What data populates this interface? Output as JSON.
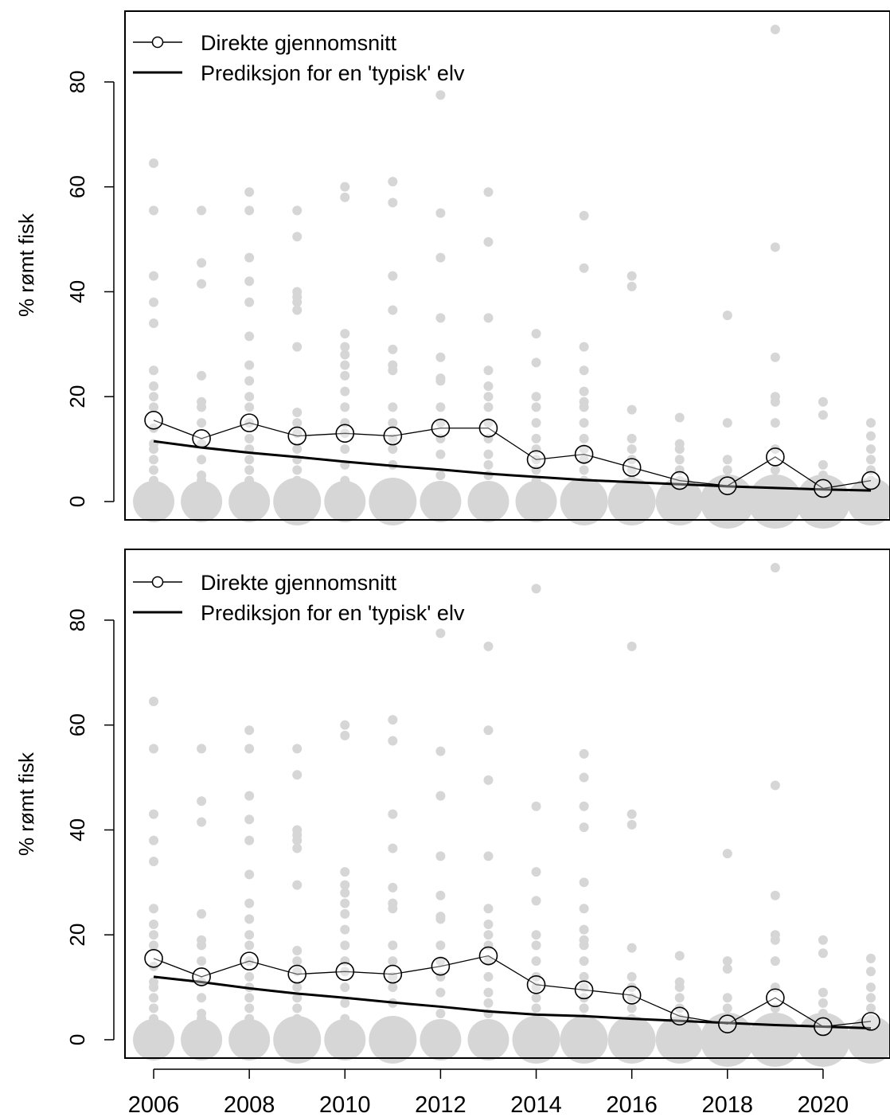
{
  "chart_data": [
    {
      "type": "scatter",
      "ylabel": "% rømt fisk",
      "xlabel": "",
      "title": "",
      "xlim": [
        2005.4,
        2021.4
      ],
      "ylim": [
        -3.5,
        93.5
      ],
      "y_ticks": [
        "0",
        "20",
        "40",
        "60",
        "80"
      ],
      "legend": {
        "position": "top-left",
        "entries": [
          "Direkte gjennomsnitt",
          "Prediksjon for en 'typisk' elv"
        ]
      },
      "colors": {
        "points": "#d6d6d6",
        "lines": "#000000"
      },
      "raw_points": [
        {
          "x": 2006,
          "y": [
            64.5,
            55.5,
            43,
            38,
            34,
            25,
            22,
            20,
            18,
            14,
            11,
            10,
            8,
            6,
            4,
            2
          ],
          "zero_size": 3
        },
        {
          "x": 2007,
          "y": [
            55.5,
            45.5,
            41.5,
            24,
            19,
            18,
            15,
            11,
            8,
            5,
            4,
            3,
            2
          ],
          "zero_size": 3
        },
        {
          "x": 2008,
          "y": [
            59,
            55.5,
            46.5,
            42,
            38,
            31.5,
            26,
            23,
            20,
            18,
            15,
            12,
            10,
            8,
            6,
            4,
            2
          ],
          "zero_size": 3
        },
        {
          "x": 2009,
          "y": [
            55.5,
            50.5,
            40,
            39,
            38,
            36.5,
            29.5,
            17,
            15,
            13,
            10,
            8,
            6,
            4,
            2
          ],
          "zero_size": 4
        },
        {
          "x": 2010,
          "y": [
            60,
            58,
            32,
            29.5,
            28,
            26,
            24,
            21,
            18,
            15,
            13,
            10,
            7,
            4,
            3,
            2
          ],
          "zero_size": 3
        },
        {
          "x": 2011,
          "y": [
            61,
            57,
            43,
            36.5,
            29,
            26,
            25,
            18,
            15,
            12,
            10,
            7,
            3,
            2
          ],
          "zero_size": 4
        },
        {
          "x": 2012,
          "y": [
            77.5,
            55,
            46.5,
            35,
            27.5,
            23.5,
            23,
            18,
            15,
            12,
            9,
            5,
            3,
            2
          ],
          "zero_size": 3
        },
        {
          "x": 2013,
          "y": [
            59,
            49.5,
            35,
            25,
            22,
            20,
            18,
            15,
            12,
            9,
            7,
            5,
            3,
            2
          ],
          "zero_size": 3
        },
        {
          "x": 2014,
          "y": [
            32,
            26.5,
            20,
            18,
            15,
            12,
            10,
            8,
            6,
            4,
            2
          ],
          "zero_size": 3
        },
        {
          "x": 2015,
          "y": [
            54.5,
            44.5,
            29.5,
            25,
            21,
            19,
            18,
            15,
            12,
            10,
            8,
            6,
            4,
            2
          ],
          "zero_size": 4
        },
        {
          "x": 2016,
          "y": [
            43,
            41,
            17.5,
            12,
            10,
            8,
            6,
            4,
            2
          ],
          "zero_size": 4
        },
        {
          "x": 2017,
          "y": [
            16,
            11,
            10,
            8,
            6,
            4,
            2
          ],
          "zero_size": 4
        },
        {
          "x": 2018,
          "y": [
            35.5,
            15,
            8,
            6,
            4,
            2
          ],
          "zero_size": 5
        },
        {
          "x": 2019,
          "y": [
            90,
            48.5,
            27.5,
            20,
            19,
            15,
            10,
            6,
            4,
            2
          ],
          "zero_size": 5
        },
        {
          "x": 2020,
          "y": [
            19,
            16.5,
            7,
            5,
            3,
            2
          ],
          "zero_size": 5
        },
        {
          "x": 2021,
          "y": [
            15,
            12.5,
            10,
            8,
            6,
            4,
            2
          ],
          "zero_size": 4
        }
      ],
      "series": [
        {
          "name": "Direkte gjennomsnitt",
          "x": [
            2006,
            2007,
            2008,
            2009,
            2010,
            2011,
            2012,
            2013,
            2014,
            2015,
            2016,
            2017,
            2018,
            2019,
            2020,
            2021
          ],
          "values": [
            15.5,
            12,
            15,
            12.5,
            13,
            12.5,
            14,
            14,
            8,
            9,
            6.5,
            4,
            3,
            8.5,
            2.5,
            4
          ]
        },
        {
          "name": "Prediksjon for en 'typisk' elv",
          "x": [
            2006,
            2007,
            2008,
            2009,
            2010,
            2011,
            2012,
            2013,
            2014,
            2015,
            2016,
            2017,
            2018,
            2019,
            2020,
            2021
          ],
          "values": [
            11.5,
            10.3,
            9.3,
            8.5,
            7.6,
            6.8,
            6.1,
            5.3,
            4.7,
            4.1,
            3.7,
            3.3,
            2.9,
            2.6,
            2.3,
            2.1
          ]
        }
      ]
    },
    {
      "type": "scatter",
      "ylabel": "% rømt fisk",
      "xlabel": "",
      "title": "",
      "xlim": [
        2005.4,
        2021.4
      ],
      "ylim": [
        -3.5,
        93.5
      ],
      "x_ticks": [
        "2006",
        "2008",
        "2010",
        "2012",
        "2014",
        "2016",
        "2018",
        "2020"
      ],
      "y_ticks": [
        "0",
        "20",
        "40",
        "60",
        "80"
      ],
      "legend": {
        "position": "top-left",
        "entries": [
          "Direkte gjennomsnitt",
          "Prediksjon for en 'typisk' elv"
        ]
      },
      "colors": {
        "points": "#d6d6d6",
        "lines": "#000000"
      },
      "raw_points": [
        {
          "x": 2006,
          "y": [
            64.5,
            55.5,
            43,
            38,
            34,
            25,
            22,
            20,
            18,
            14,
            11,
            10,
            8,
            6,
            4,
            2
          ],
          "zero_size": 3
        },
        {
          "x": 2007,
          "y": [
            55.5,
            45.5,
            41.5,
            24,
            19,
            18,
            15,
            11,
            8,
            5,
            4,
            3,
            2
          ],
          "zero_size": 3
        },
        {
          "x": 2008,
          "y": [
            59,
            55.5,
            46.5,
            42,
            38,
            31.5,
            26,
            23,
            20,
            18,
            15,
            12,
            10,
            8,
            6,
            4,
            2
          ],
          "zero_size": 3
        },
        {
          "x": 2009,
          "y": [
            55.5,
            50.5,
            40,
            39,
            38,
            36.5,
            29.5,
            17,
            15,
            13,
            10,
            8,
            6,
            4,
            2
          ],
          "zero_size": 4
        },
        {
          "x": 2010,
          "y": [
            60,
            58,
            32,
            29.5,
            28,
            26,
            24,
            21,
            18,
            15,
            13,
            10,
            7,
            4,
            3,
            2
          ],
          "zero_size": 3
        },
        {
          "x": 2011,
          "y": [
            61,
            57,
            43,
            36.5,
            29,
            26,
            25,
            18,
            15,
            12,
            10,
            7,
            3,
            2
          ],
          "zero_size": 4
        },
        {
          "x": 2012,
          "y": [
            77.5,
            55,
            46.5,
            35,
            27.5,
            23.5,
            23,
            18,
            15,
            12,
            9,
            5,
            3,
            2
          ],
          "zero_size": 3
        },
        {
          "x": 2013,
          "y": [
            75,
            59,
            49.5,
            35,
            25,
            22,
            20,
            18,
            15,
            12,
            9,
            7,
            5,
            3,
            2
          ],
          "zero_size": 3
        },
        {
          "x": 2014,
          "y": [
            86,
            44.5,
            32,
            26.5,
            20,
            18,
            15,
            12,
            10,
            8,
            6,
            4,
            2
          ],
          "zero_size": 4
        },
        {
          "x": 2015,
          "y": [
            54.5,
            50,
            44.5,
            40.5,
            30,
            25,
            21,
            19,
            18,
            15,
            12,
            10,
            8,
            6,
            4,
            2
          ],
          "zero_size": 4
        },
        {
          "x": 2016,
          "y": [
            75,
            43,
            41,
            17.5,
            12,
            10,
            8,
            6,
            4,
            2
          ],
          "zero_size": 4
        },
        {
          "x": 2017,
          "y": [
            16,
            11,
            10,
            8,
            6,
            4,
            2
          ],
          "zero_size": 4
        },
        {
          "x": 2018,
          "y": [
            35.5,
            15,
            13.5,
            8,
            6,
            4,
            2
          ],
          "zero_size": 5
        },
        {
          "x": 2019,
          "y": [
            90,
            48.5,
            27.5,
            20,
            19,
            15,
            10,
            6,
            4,
            2
          ],
          "zero_size": 5
        },
        {
          "x": 2020,
          "y": [
            19,
            16.5,
            9,
            7,
            5,
            3,
            2
          ],
          "zero_size": 5
        },
        {
          "x": 2021,
          "y": [
            15.5,
            13,
            10,
            8,
            6,
            4,
            2
          ],
          "zero_size": 4
        }
      ],
      "series": [
        {
          "name": "Direkte gjennomsnitt",
          "x": [
            2006,
            2007,
            2008,
            2009,
            2010,
            2011,
            2012,
            2013,
            2014,
            2015,
            2016,
            2017,
            2018,
            2019,
            2020,
            2021
          ],
          "values": [
            15.5,
            12,
            15,
            12.5,
            13,
            12.5,
            14,
            16,
            10.5,
            9.5,
            8.5,
            4.5,
            3,
            8,
            2.5,
            3.5
          ]
        },
        {
          "name": "Prediksjon for en 'typisk' elv",
          "x": [
            2006,
            2007,
            2008,
            2009,
            2010,
            2011,
            2012,
            2013,
            2014,
            2015,
            2016,
            2017,
            2018,
            2019,
            2020,
            2021
          ],
          "values": [
            12,
            11,
            9.8,
            8.8,
            8,
            7.1,
            6.3,
            5.4,
            4.8,
            4.5,
            4,
            3.6,
            3.2,
            2.8,
            2.5,
            2.2
          ]
        }
      ]
    }
  ]
}
